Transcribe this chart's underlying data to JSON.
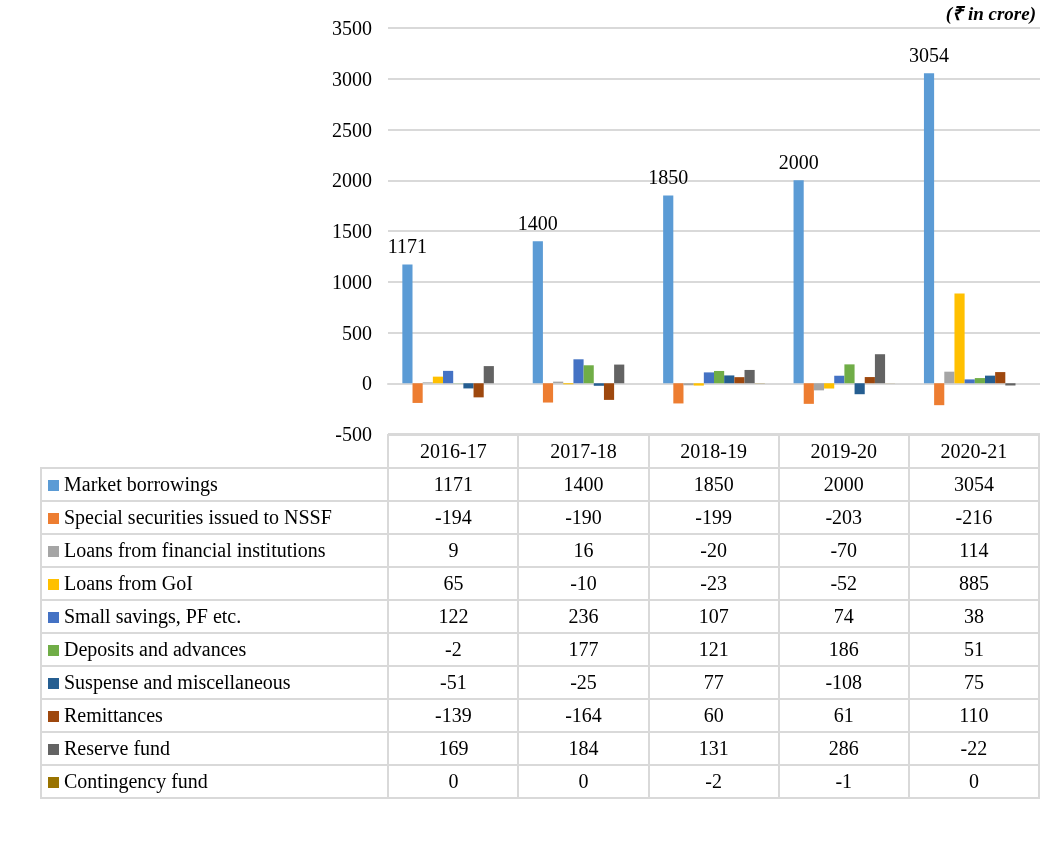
{
  "chart_data": {
    "type": "bar",
    "categories": [
      "2016-17",
      "2017-18",
      "2018-19",
      "2019-20",
      "2020-21"
    ],
    "series": [
      {
        "name": "Market borrowings",
        "color": "#5b9bd5",
        "values": [
          1171,
          1400,
          1850,
          2000,
          3054
        ]
      },
      {
        "name": "Special securities issued to NSSF",
        "color": "#ed7d31",
        "values": [
          -194,
          -190,
          -199,
          -203,
          -216
        ]
      },
      {
        "name": "Loans from financial institutions",
        "color": "#a5a5a5",
        "values": [
          9,
          16,
          -20,
          -70,
          114
        ]
      },
      {
        "name": "Loans from GoI",
        "color": "#ffc000",
        "values": [
          65,
          -10,
          -23,
          -52,
          885
        ]
      },
      {
        "name": "Small savings, PF etc.",
        "color": "#4472c4",
        "values": [
          122,
          236,
          107,
          74,
          38
        ]
      },
      {
        "name": "Deposits and advances",
        "color": "#70ad47",
        "values": [
          -2,
          177,
          121,
          186,
          51
        ]
      },
      {
        "name": "Suspense and miscellaneous",
        "color": "#255e91",
        "values": [
          -51,
          -25,
          77,
          -108,
          75
        ]
      },
      {
        "name": "Remittances",
        "color": "#9e480e",
        "values": [
          -139,
          -164,
          60,
          61,
          110
        ]
      },
      {
        "name": "Reserve fund",
        "color": "#636363",
        "values": [
          169,
          184,
          131,
          286,
          -22
        ]
      },
      {
        "name": "Contingency fund",
        "color": "#997300",
        "values": [
          0,
          0,
          -2,
          -1,
          0
        ]
      }
    ],
    "ylim": [
      -500,
      3500
    ],
    "yticks": [
      -500,
      0,
      500,
      1000,
      1500,
      2000,
      2500,
      3000,
      3500
    ],
    "grid": "y",
    "data_labels": true,
    "legend": "bottom",
    "annotations": [
      "(₹ in crore)",
      "1171",
      "1400",
      "1850",
      "2000",
      "3054"
    ]
  }
}
